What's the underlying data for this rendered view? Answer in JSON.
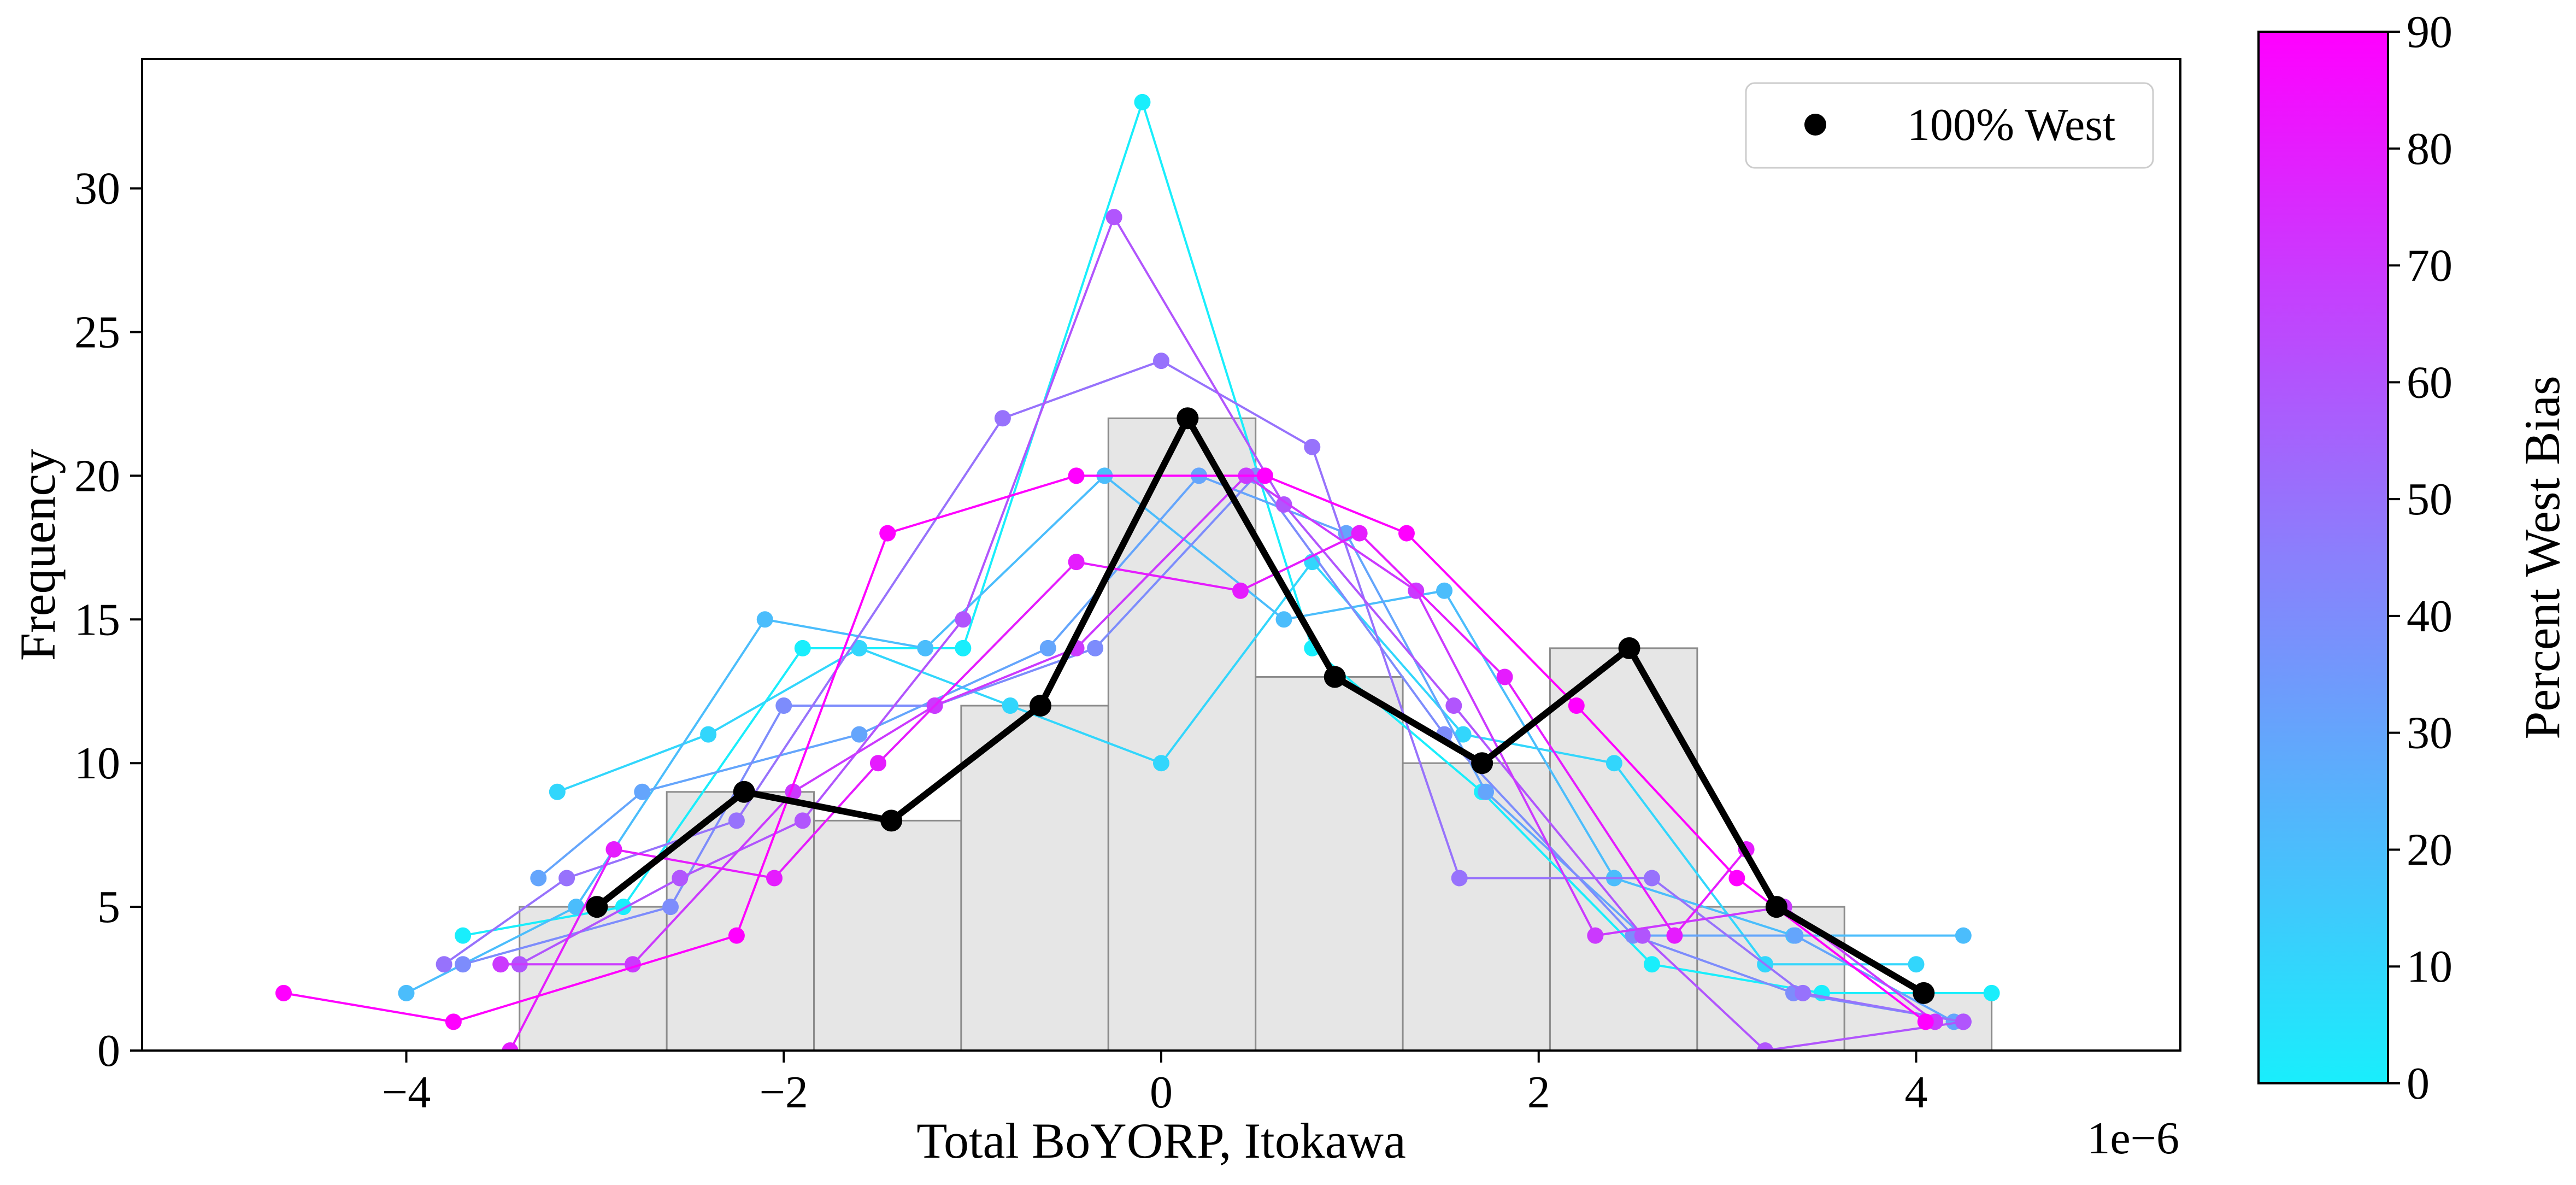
{
  "chart_data": {
    "type": "line",
    "xlabel": "Total BoYORP, Itokawa",
    "x_offset_label": "1e−6",
    "ylabel": "Frequency",
    "xlim": [
      -5.4,
      5.4
    ],
    "ylim": [
      0,
      34.5
    ],
    "x_ticks": [
      -4,
      -2,
      0,
      2,
      4
    ],
    "y_ticks": [
      0,
      5,
      10,
      15,
      20,
      25,
      30
    ],
    "colorbar": {
      "label": "Percent West Bias",
      "range": [
        0,
        90
      ],
      "ticks": [
        0,
        10,
        20,
        30,
        40,
        50,
        60,
        70,
        80,
        90
      ],
      "color_min": "#19eefc",
      "color_mid": "#8a80fc",
      "color_max": "#ff00ff"
    },
    "histogram": {
      "bin_edges": [
        -3.4,
        -2.62,
        -1.84,
        -1.06,
        -0.28,
        0.5,
        1.28,
        2.06,
        2.84,
        3.62,
        4.4
      ],
      "counts": [
        5,
        9,
        8,
        12,
        22,
        13,
        10,
        14,
        5,
        2
      ],
      "fill": "#e6e6e6",
      "edge": "#8c8c8c"
    },
    "legend": {
      "position": "upper right",
      "entries": [
        "100% West"
      ]
    },
    "series": [
      {
        "name": "100% West",
        "color": "#000000",
        "highlight": true,
        "x": [
          -2.99,
          -2.21,
          -1.43,
          -0.64,
          0.14,
          0.92,
          1.7,
          2.48,
          3.26,
          4.04
        ],
        "y": [
          5,
          9,
          8,
          12,
          22,
          13,
          10,
          14,
          5,
          2
        ]
      },
      {
        "bias": 0,
        "x": [
          -3.7,
          -2.85,
          -1.9,
          -1.05,
          -0.1,
          0.8,
          1.7,
          2.6,
          3.5,
          4.4
        ],
        "y": [
          4,
          5,
          14,
          14,
          33,
          14,
          9,
          3,
          2,
          2
        ]
      },
      {
        "bias": 10,
        "x": [
          -3.2,
          -2.4,
          -1.6,
          -0.8,
          0,
          0.8,
          1.6,
          2.4,
          3.2,
          4.0
        ],
        "y": [
          9,
          11,
          14,
          12,
          10,
          17,
          11,
          10,
          3,
          3
        ]
      },
      {
        "bias": 20,
        "x": [
          -4,
          -3.1,
          -2.1,
          -1.25,
          -0.3,
          0.65,
          1.5,
          2.4,
          3.35,
          4.25
        ],
        "y": [
          2,
          5,
          15,
          14,
          20,
          15,
          16,
          6,
          4,
          4
        ]
      },
      {
        "bias": 30,
        "x": [
          -3.3,
          -2.75,
          -1.6,
          -0.6,
          0.2,
          0.98,
          1.72,
          2.55,
          3.36,
          4.2
        ],
        "y": [
          6,
          9,
          11,
          14,
          20,
          18,
          9,
          4,
          4,
          1
        ]
      },
      {
        "bias": 40,
        "x": [
          -3.7,
          -2.6,
          -2.0,
          -1.2,
          -0.35,
          0.5,
          1.5,
          2.5,
          3.35,
          4.25
        ],
        "y": [
          3,
          5,
          12,
          12,
          14,
          20,
          11,
          4,
          2,
          1
        ]
      },
      {
        "bias": 50,
        "x": [
          -3.8,
          -3.15,
          -2.25,
          -0.84,
          0.0,
          0.8,
          1.58,
          2.6,
          3.4,
          4.25
        ],
        "y": [
          3,
          6,
          8,
          22,
          24,
          21,
          6,
          6,
          2,
          1
        ]
      },
      {
        "bias": 60,
        "x": [
          -3.4,
          -2.55,
          -1.9,
          -1.05,
          -0.25,
          0.65,
          1.55,
          2.55,
          3.2,
          4.25
        ],
        "y": [
          3,
          6,
          8,
          15,
          29,
          19,
          12,
          4,
          0,
          1
        ]
      },
      {
        "bias": 70,
        "x": [
          -3.5,
          -2.8,
          -1.95,
          -1.2,
          -0.45,
          0.45,
          1.35,
          2.3,
          3.3,
          4.1
        ],
        "y": [
          3,
          3,
          9,
          12,
          14,
          20,
          16,
          4,
          5,
          1
        ]
      },
      {
        "bias": 80,
        "x": [
          -3.45,
          -2.9,
          -2.05,
          -1.5,
          -0.45,
          0.42,
          1.05,
          1.82,
          2.72,
          3.1
        ],
        "y": [
          0,
          7,
          6,
          10,
          17,
          16,
          18,
          13,
          4,
          7
        ]
      },
      {
        "bias": 90,
        "x": [
          -4.65,
          -3.75,
          -2.25,
          -1.45,
          -0.45,
          0.55,
          1.3,
          2.2,
          3.05,
          4.05
        ],
        "y": [
          2,
          1,
          4,
          18,
          20,
          20,
          18,
          12,
          6,
          1
        ]
      }
    ]
  }
}
